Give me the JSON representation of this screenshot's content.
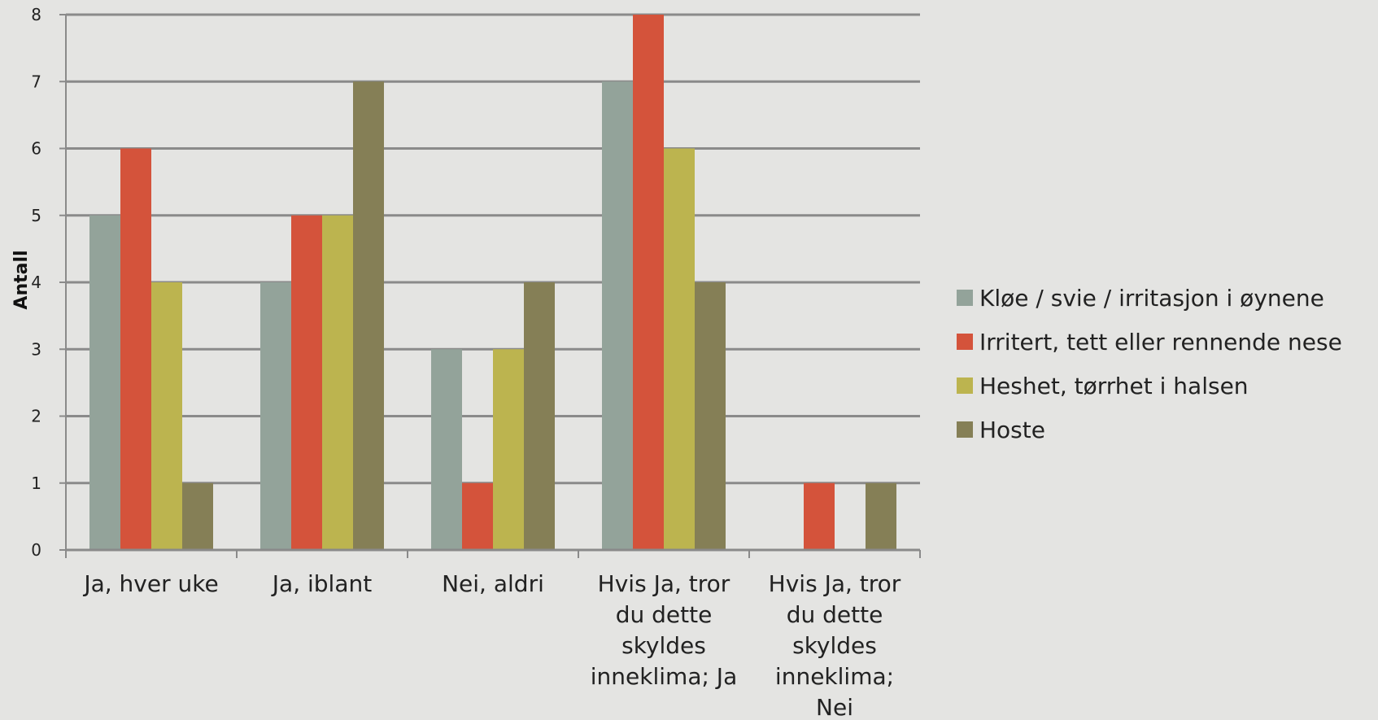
{
  "chart_data": {
    "type": "bar",
    "title": "",
    "xlabel": "",
    "ylabel": "Antall",
    "ylim": [
      0,
      8
    ],
    "yticks": [
      0,
      1,
      2,
      3,
      4,
      5,
      6,
      7,
      8
    ],
    "grid": true,
    "legend_position": "right",
    "categories": [
      [
        "Ja, hver uke"
      ],
      [
        "Ja, iblant"
      ],
      [
        "Nei, aldri"
      ],
      [
        "Hvis Ja, tror",
        "du dette",
        "skyldes",
        "inneklima; Ja"
      ],
      [
        "Hvis Ja, tror",
        "du dette",
        "skyldes",
        "inneklima;",
        "Nei"
      ]
    ],
    "series": [
      {
        "name": "Kløe / svie / irritasjon i øynene",
        "color": "#93a39a",
        "values": [
          5,
          4,
          3,
          7,
          0
        ]
      },
      {
        "name": "Irritert, tett eller rennende nese",
        "color": "#d4533b",
        "values": [
          6,
          5,
          1,
          8,
          1
        ]
      },
      {
        "name": "Heshet, tørrhet i halsen",
        "color": "#bcb44f",
        "values": [
          4,
          5,
          3,
          6,
          0
        ]
      },
      {
        "name": "Hoste",
        "color": "#857f56",
        "values": [
          1,
          7,
          4,
          4,
          1
        ]
      }
    ]
  }
}
